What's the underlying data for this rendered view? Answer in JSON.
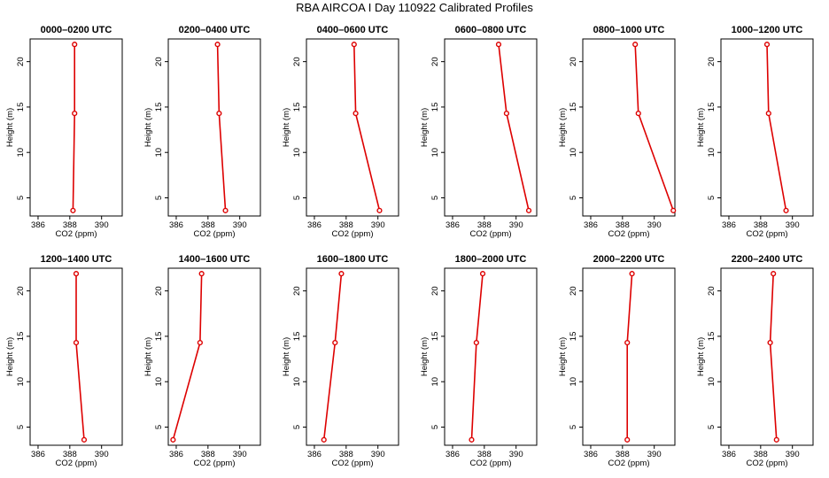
{
  "page": {
    "title": "RBA AIRCOA I  Day 110922  Calibrated Profiles"
  },
  "chart_data": {
    "type": "line",
    "title": "RBA AIRCOA I  Day 110922  Calibrated Profiles",
    "xlabel": "CO2 (ppm)",
    "ylabel": "Height (m)",
    "xlim": [
      385.5,
      391.3
    ],
    "ylim": [
      3.0,
      22.5
    ],
    "xticks": [
      386,
      388,
      390
    ],
    "yticks": [
      5,
      10,
      15,
      20
    ],
    "line_color": "#dd0000",
    "panels": [
      {
        "title": "0000–0200 UTC",
        "points": [
          {
            "x": 388.3,
            "y": 21.9
          },
          {
            "x": 388.3,
            "y": 14.3
          },
          {
            "x": 388.2,
            "y": 3.6
          }
        ]
      },
      {
        "title": "0200–0400 UTC",
        "points": [
          {
            "x": 388.6,
            "y": 21.9
          },
          {
            "x": 388.7,
            "y": 14.3
          },
          {
            "x": 389.1,
            "y": 3.6
          }
        ]
      },
      {
        "title": "0400–0600 UTC",
        "points": [
          {
            "x": 388.5,
            "y": 21.9
          },
          {
            "x": 388.6,
            "y": 14.3
          },
          {
            "x": 390.1,
            "y": 3.6
          }
        ]
      },
      {
        "title": "0600–0800 UTC",
        "points": [
          {
            "x": 388.9,
            "y": 21.9
          },
          {
            "x": 389.4,
            "y": 14.3
          },
          {
            "x": 390.8,
            "y": 3.6
          }
        ]
      },
      {
        "title": "0800–1000 UTC",
        "points": [
          {
            "x": 388.8,
            "y": 21.9
          },
          {
            "x": 389.0,
            "y": 14.3
          },
          {
            "x": 391.2,
            "y": 3.6
          }
        ]
      },
      {
        "title": "1000–1200 UTC",
        "points": [
          {
            "x": 388.4,
            "y": 21.9
          },
          {
            "x": 388.5,
            "y": 14.3
          },
          {
            "x": 389.6,
            "y": 3.6
          }
        ]
      },
      {
        "title": "1200–1400 UTC",
        "points": [
          {
            "x": 388.4,
            "y": 21.9
          },
          {
            "x": 388.4,
            "y": 14.3
          },
          {
            "x": 388.9,
            "y": 3.6
          }
        ]
      },
      {
        "title": "1400–1600 UTC",
        "points": [
          {
            "x": 387.6,
            "y": 21.9
          },
          {
            "x": 387.5,
            "y": 14.3
          },
          {
            "x": 385.8,
            "y": 3.6
          }
        ]
      },
      {
        "title": "1600–1800 UTC",
        "points": [
          {
            "x": 387.7,
            "y": 21.9
          },
          {
            "x": 387.3,
            "y": 14.3
          },
          {
            "x": 386.6,
            "y": 3.6
          }
        ]
      },
      {
        "title": "1800–2000 UTC",
        "points": [
          {
            "x": 387.9,
            "y": 21.9
          },
          {
            "x": 387.5,
            "y": 14.3
          },
          {
            "x": 387.2,
            "y": 3.6
          }
        ]
      },
      {
        "title": "2000–2200 UTC",
        "points": [
          {
            "x": 388.6,
            "y": 21.9
          },
          {
            "x": 388.3,
            "y": 14.3
          },
          {
            "x": 388.3,
            "y": 3.6
          }
        ]
      },
      {
        "title": "2200–2400 UTC",
        "points": [
          {
            "x": 388.8,
            "y": 21.9
          },
          {
            "x": 388.6,
            "y": 14.3
          },
          {
            "x": 389.0,
            "y": 3.6
          }
        ]
      }
    ]
  }
}
